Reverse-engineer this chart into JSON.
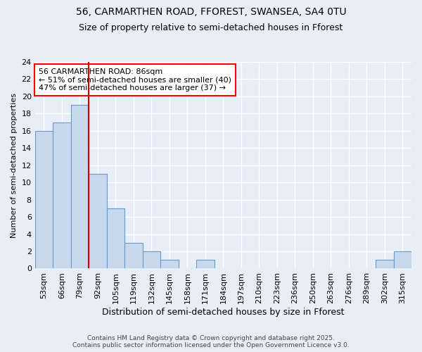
{
  "title1": "56, CARMARTHEN ROAD, FFOREST, SWANSEA, SA4 0TU",
  "title2": "Size of property relative to semi-detached houses in Fforest",
  "xlabel": "Distribution of semi-detached houses by size in Fforest",
  "ylabel": "Number of semi-detached properties",
  "categories": [
    "53sqm",
    "66sqm",
    "79sqm",
    "92sqm",
    "105sqm",
    "119sqm",
    "132sqm",
    "145sqm",
    "158sqm",
    "171sqm",
    "184sqm",
    "197sqm",
    "210sqm",
    "223sqm",
    "236sqm",
    "250sqm",
    "263sqm",
    "276sqm",
    "289sqm",
    "302sqm",
    "315sqm"
  ],
  "values": [
    16,
    17,
    19,
    11,
    7,
    3,
    2,
    1,
    0,
    1,
    0,
    0,
    0,
    0,
    0,
    0,
    0,
    0,
    0,
    1,
    2
  ],
  "bar_color": "#c8d9ed",
  "bar_edge_color": "#6699cc",
  "vline_x_index": 2,
  "vline_color": "#cc0000",
  "annotation_title": "56 CARMARTHEN ROAD: 86sqm",
  "annotation_line1": "← 51% of semi-detached houses are smaller (40)",
  "annotation_line2": "47% of semi-detached houses are larger (37) →",
  "ylim": [
    0,
    24
  ],
  "yticks": [
    0,
    2,
    4,
    6,
    8,
    10,
    12,
    14,
    16,
    18,
    20,
    22,
    24
  ],
  "footer1": "Contains HM Land Registry data © Crown copyright and database right 2025.",
  "footer2": "Contains public sector information licensed under the Open Government Licence v3.0.",
  "bg_color": "#e8eef8",
  "grid_color": "#ffffff",
  "title1_fontsize": 10,
  "title2_fontsize": 9,
  "xlabel_fontsize": 9,
  "ylabel_fontsize": 8,
  "tick_fontsize": 8,
  "annotation_fontsize": 8,
  "footer_fontsize": 6.5
}
